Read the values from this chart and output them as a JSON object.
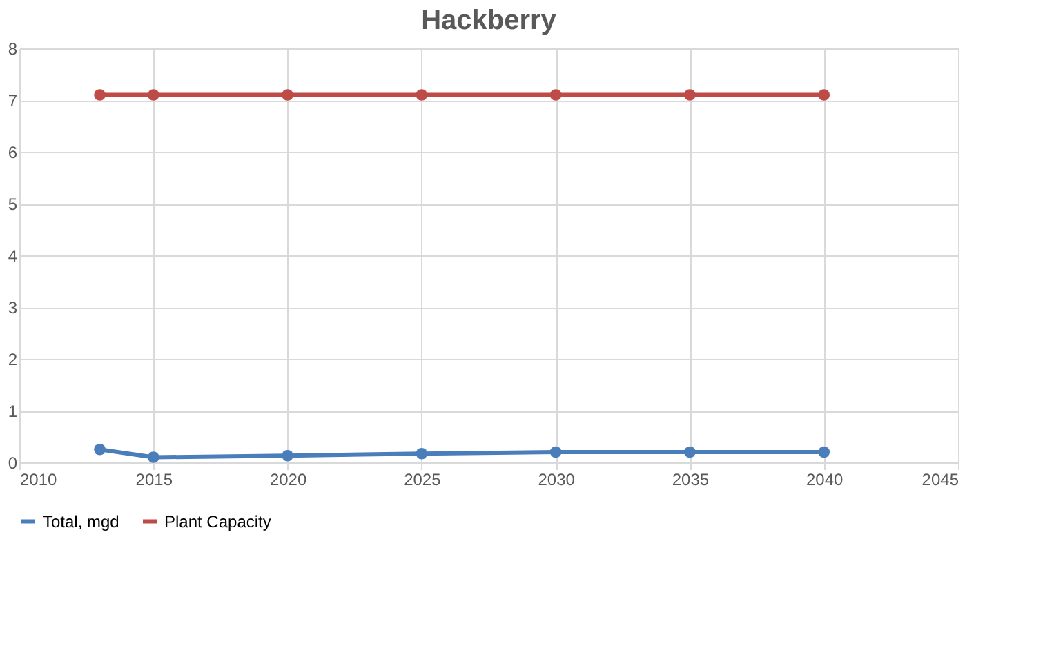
{
  "chart_data": {
    "type": "line",
    "title": "Hackberry",
    "x": [
      2013,
      2015,
      2020,
      2025,
      2030,
      2035,
      2040
    ],
    "series": [
      {
        "name": "Total, mgd",
        "color": "#4a7ebb",
        "values": [
          0.25,
          0.1,
          0.13,
          0.17,
          0.2,
          0.2,
          0.2
        ]
      },
      {
        "name": "Plant Capacity",
        "color": "#be4b48",
        "values": [
          7.1,
          7.1,
          7.1,
          7.1,
          7.1,
          7.1,
          7.1
        ]
      }
    ],
    "xlim": [
      2010,
      2045
    ],
    "xticks": [
      2010,
      2015,
      2020,
      2025,
      2030,
      2035,
      2040,
      2045
    ],
    "ylim": [
      0,
      8
    ],
    "yticks": [
      0,
      1,
      2,
      3,
      4,
      5,
      6,
      7,
      8
    ],
    "grid": true,
    "legend": "bottom",
    "marker": "circle",
    "line_style": "solid"
  }
}
